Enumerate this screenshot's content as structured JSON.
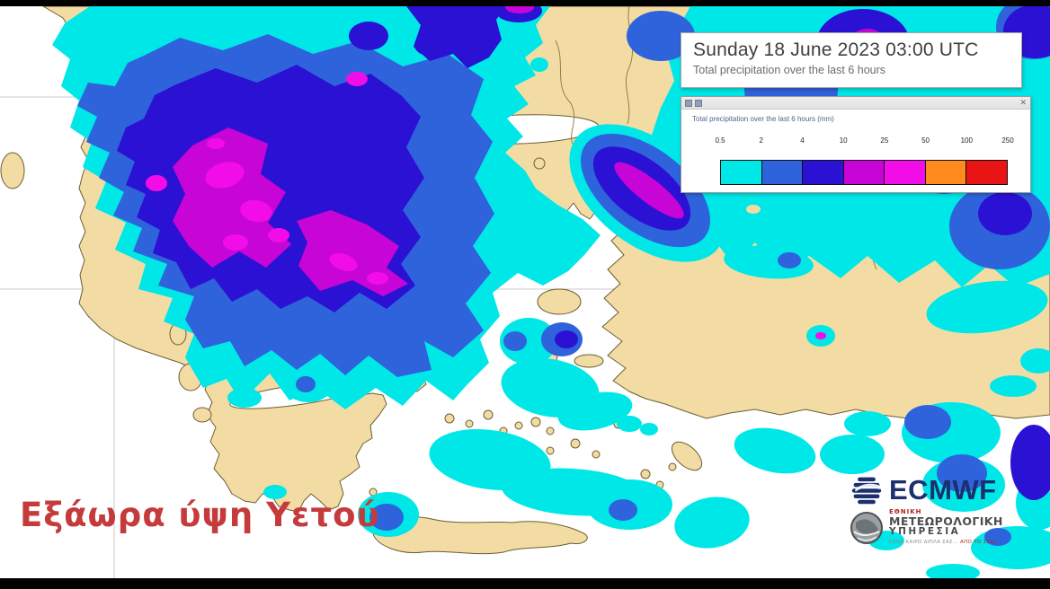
{
  "header": {
    "title": "Sunday 18 June 2023 03:00 UTC",
    "subtitle": "Total precipitation over the last 6 hours"
  },
  "legend": {
    "title": "Total precipitation over the last 6 hours (mm)",
    "close_icon": "✕",
    "thresholds": [
      "0.5",
      "2",
      "4",
      "10",
      "25",
      "50",
      "100",
      "250"
    ],
    "colors": [
      "#00E7E7",
      "#2F63DC",
      "#2B11D4",
      "#C705D6",
      "#F20CE8",
      "#FF8A1E",
      "#E91414"
    ]
  },
  "caption": {
    "text": "Εξάωρα ύψη Υετού",
    "color": "#C53B3C"
  },
  "branding": {
    "ecmwf_label": "ECMWF",
    "ecmwf_color": "#1C2F6E",
    "hnms_line1": "ΕΘΝΙΚΗ",
    "hnms_line2": "ΜΕΤΕΩΡΟΛΟΓΙΚΗ",
    "hnms_line3": "ΥΠΗΡΕΣΙΑ",
    "hnms_tagline": "ΚΑΘΕ ΚΑΙΡΟ ΔΙΠΛΑ ΣΑΣ...",
    "hnms_tagline_year": "ΑΠΟ ΤΟ 1931"
  },
  "map": {
    "sea_color": "#FFFFFF",
    "land_color": "#F2DCA4",
    "coast_color": "#6B5D33",
    "grid_color": "#C8C8C8",
    "precip_scale_mm": {
      "0.5-2": "#00E7E7",
      "2-4": "#2F63DC",
      "4-10": "#2B11D4",
      "10-25": "#C705D6",
      "25-50": "#F20CE8",
      "50-100": "#FF8A1E",
      "100-250": "#E91414"
    }
  }
}
